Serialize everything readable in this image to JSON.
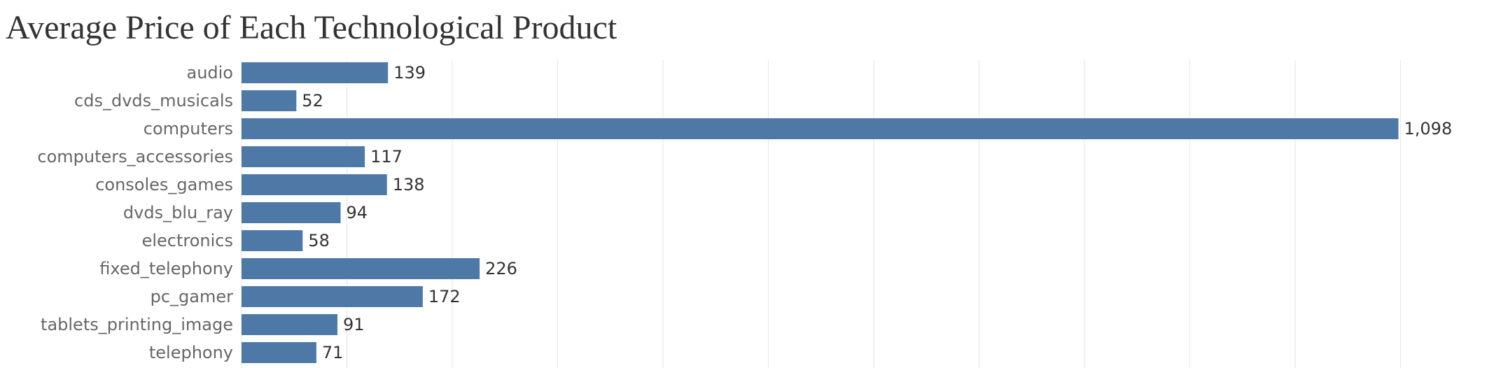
{
  "chart_data": {
    "type": "bar",
    "orientation": "horizontal",
    "title": "Average Price of Each Technological Product",
    "categories": [
      "audio",
      "cds_dvds_musicals",
      "computers",
      "computers_accessories",
      "consoles_games",
      "dvds_blu_ray",
      "electronics",
      "fixed_telephony",
      "pc_gamer",
      "tablets_printing_image",
      "telephony"
    ],
    "values": [
      139,
      52,
      1098,
      117,
      138,
      94,
      58,
      226,
      172,
      91,
      71
    ],
    "value_labels": [
      "139",
      "52",
      "1,098",
      "117",
      "138",
      "94",
      "58",
      "226",
      "172",
      "91",
      "71"
    ],
    "xlim": [
      0,
      1200
    ],
    "grid": true,
    "bar_color": "#4e79a7",
    "grid_color": "#e6e6e6"
  }
}
